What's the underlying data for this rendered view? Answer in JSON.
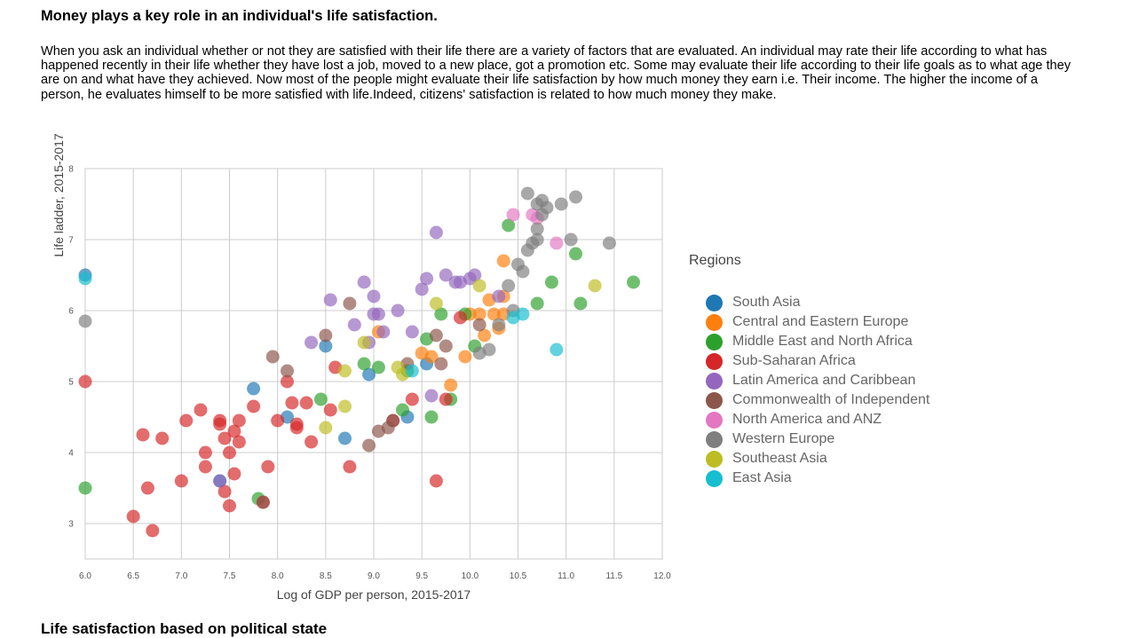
{
  "page": {
    "heading": "Money plays a key role in an individual's life satisfaction.",
    "intro": "When you ask an individual whether or not they are satisfied with their life there are a variety of factors that are evaluated. An individual may rate their life according to what has happened recently in their life whether they have lost a job, moved to a new place, got a promotion etc. Some may evaluate their life according to their life goals as to what age they are on and what have they achieved. Now most of the people might evaluate their life satisfaction by how much money they earn i.e. Their income. The higher the income of a person, he evaluates himself to be more satisfied with life.Indeed, citizens' satisfaction is related to how much money they make.",
    "next_heading": "Life satisfaction based on political state"
  },
  "chart_data": {
    "type": "scatter",
    "xlabel": "Log of GDP per person, 2015-2017",
    "ylabel": "Life ladder, 2015-2017",
    "xlim": [
      6.0,
      12.0
    ],
    "ylim": [
      2.5,
      8.0
    ],
    "x_ticks": [
      "6.0",
      "6.5",
      "7.0",
      "7.5",
      "8.0",
      "8.5",
      "9.0",
      "9.5",
      "10.0",
      "10.5",
      "11.0",
      "11.5",
      "12.0"
    ],
    "y_ticks": [
      "3",
      "4",
      "5",
      "6",
      "7",
      "8"
    ],
    "grid": true,
    "legend_title": "Regions",
    "legend_position": "right",
    "series": [
      {
        "name": "South Asia",
        "color": "#1f77b4",
        "points": [
          [
            6.0,
            6.5
          ],
          [
            7.4,
            3.6
          ],
          [
            7.75,
            4.9
          ],
          [
            8.1,
            4.5
          ],
          [
            8.5,
            5.5
          ],
          [
            8.7,
            4.2
          ],
          [
            8.95,
            5.1
          ],
          [
            9.35,
            4.5
          ],
          [
            9.55,
            5.25
          ]
        ]
      },
      {
        "name": "Central and Eastern Europe",
        "color": "#ff7f0e",
        "points": [
          [
            9.05,
            5.7
          ],
          [
            9.5,
            5.4
          ],
          [
            9.6,
            5.35
          ],
          [
            9.8,
            4.95
          ],
          [
            9.95,
            5.35
          ],
          [
            10.0,
            5.95
          ],
          [
            10.1,
            5.95
          ],
          [
            10.15,
            5.65
          ],
          [
            10.2,
            6.15
          ],
          [
            10.25,
            5.95
          ],
          [
            10.3,
            5.75
          ],
          [
            10.35,
            6.2
          ],
          [
            10.35,
            5.95
          ],
          [
            10.35,
            6.7
          ]
        ]
      },
      {
        "name": "Middle East and North Africa",
        "color": "#2ca02c",
        "points": [
          [
            6.0,
            3.5
          ],
          [
            7.8,
            3.35
          ],
          [
            8.45,
            4.75
          ],
          [
            8.9,
            5.25
          ],
          [
            9.05,
            5.2
          ],
          [
            9.3,
            4.6
          ],
          [
            9.35,
            5.15
          ],
          [
            9.55,
            5.6
          ],
          [
            9.6,
            4.5
          ],
          [
            9.7,
            5.95
          ],
          [
            9.8,
            4.75
          ],
          [
            9.95,
            5.95
          ],
          [
            10.05,
            5.5
          ],
          [
            10.4,
            7.2
          ],
          [
            10.7,
            6.1
          ],
          [
            10.85,
            6.4
          ],
          [
            11.1,
            6.8
          ],
          [
            11.15,
            6.1
          ],
          [
            11.7,
            6.4
          ]
        ]
      },
      {
        "name": "Sub-Saharan Africa",
        "color": "#d62728",
        "points": [
          [
            6.0,
            5.0
          ],
          [
            6.5,
            3.1
          ],
          [
            6.6,
            4.25
          ],
          [
            6.65,
            3.5
          ],
          [
            6.7,
            2.9
          ],
          [
            6.8,
            4.2
          ],
          [
            7.0,
            3.6
          ],
          [
            7.05,
            4.45
          ],
          [
            7.2,
            4.6
          ],
          [
            7.25,
            4.0
          ],
          [
            7.25,
            3.8
          ],
          [
            7.4,
            4.4
          ],
          [
            7.4,
            4.45
          ],
          [
            7.45,
            4.2
          ],
          [
            7.45,
            3.45
          ],
          [
            7.5,
            3.25
          ],
          [
            7.5,
            4.0
          ],
          [
            7.55,
            4.3
          ],
          [
            7.55,
            3.7
          ],
          [
            7.6,
            4.45
          ],
          [
            7.6,
            4.15
          ],
          [
            7.75,
            4.65
          ],
          [
            7.85,
            3.3
          ],
          [
            7.9,
            3.8
          ],
          [
            8.0,
            4.45
          ],
          [
            8.1,
            5.0
          ],
          [
            8.15,
            4.7
          ],
          [
            8.2,
            4.35
          ],
          [
            8.2,
            4.4
          ],
          [
            8.3,
            4.7
          ],
          [
            8.35,
            4.15
          ],
          [
            8.55,
            4.6
          ],
          [
            8.6,
            5.2
          ],
          [
            8.75,
            3.8
          ],
          [
            9.2,
            4.45
          ],
          [
            9.4,
            4.75
          ],
          [
            9.65,
            3.6
          ],
          [
            9.75,
            4.75
          ],
          [
            9.9,
            5.9
          ]
        ]
      },
      {
        "name": "Latin America and Caribbean",
        "color": "#9467bd",
        "points": [
          [
            7.4,
            3.6
          ],
          [
            8.35,
            5.55
          ],
          [
            8.55,
            6.15
          ],
          [
            8.8,
            5.8
          ],
          [
            8.9,
            6.4
          ],
          [
            8.95,
            5.55
          ],
          [
            9.0,
            6.2
          ],
          [
            9.0,
            5.95
          ],
          [
            9.05,
            5.95
          ],
          [
            9.1,
            5.7
          ],
          [
            9.25,
            6.0
          ],
          [
            9.4,
            5.7
          ],
          [
            9.5,
            6.3
          ],
          [
            9.55,
            6.45
          ],
          [
            9.6,
            4.8
          ],
          [
            9.65,
            7.1
          ],
          [
            9.75,
            6.5
          ],
          [
            9.85,
            6.4
          ],
          [
            9.9,
            6.4
          ],
          [
            10.0,
            6.45
          ],
          [
            10.05,
            6.5
          ],
          [
            10.3,
            6.2
          ]
        ]
      },
      {
        "name": "Commonwealth of Independent States",
        "color": "#8c564b",
        "points": [
          [
            7.85,
            3.3
          ],
          [
            7.95,
            5.35
          ],
          [
            8.1,
            5.15
          ],
          [
            8.5,
            5.65
          ],
          [
            8.75,
            6.1
          ],
          [
            8.95,
            4.1
          ],
          [
            9.05,
            4.3
          ],
          [
            9.15,
            4.35
          ],
          [
            9.2,
            4.45
          ],
          [
            9.35,
            5.25
          ],
          [
            9.65,
            5.65
          ],
          [
            9.7,
            5.25
          ],
          [
            9.75,
            5.5
          ],
          [
            10.1,
            5.8
          ]
        ]
      },
      {
        "name": "North America and ANZ",
        "color": "#e377c2",
        "points": [
          [
            10.45,
            7.35
          ],
          [
            10.65,
            7.35
          ],
          [
            10.7,
            7.3
          ],
          [
            10.9,
            6.95
          ]
        ]
      },
      {
        "name": "Western Europe",
        "color": "#7f7f7f",
        "points": [
          [
            6.0,
            5.85
          ],
          [
            10.1,
            5.4
          ],
          [
            10.2,
            5.45
          ],
          [
            10.3,
            5.8
          ],
          [
            10.4,
            6.35
          ],
          [
            10.45,
            6.0
          ],
          [
            10.5,
            6.65
          ],
          [
            10.55,
            6.55
          ],
          [
            10.6,
            6.85
          ],
          [
            10.6,
            7.65
          ],
          [
            10.65,
            6.95
          ],
          [
            10.7,
            7.0
          ],
          [
            10.7,
            7.15
          ],
          [
            10.7,
            7.5
          ],
          [
            10.75,
            7.55
          ],
          [
            10.75,
            7.35
          ],
          [
            10.8,
            7.45
          ],
          [
            10.95,
            7.5
          ],
          [
            11.05,
            7.0
          ],
          [
            11.1,
            7.6
          ],
          [
            11.45,
            6.95
          ]
        ]
      },
      {
        "name": "Southeast Asia",
        "color": "#bcbd22",
        "points": [
          [
            8.5,
            4.35
          ],
          [
            8.7,
            5.15
          ],
          [
            8.7,
            4.65
          ],
          [
            8.9,
            5.55
          ],
          [
            9.25,
            5.2
          ],
          [
            9.3,
            5.1
          ],
          [
            9.65,
            6.1
          ],
          [
            10.1,
            6.35
          ],
          [
            11.3,
            6.35
          ]
        ]
      },
      {
        "name": "East Asia",
        "color": "#17becf",
        "points": [
          [
            6.0,
            6.45
          ],
          [
            9.4,
            5.15
          ],
          [
            10.45,
            5.9
          ],
          [
            10.55,
            5.95
          ],
          [
            10.9,
            5.45
          ]
        ]
      }
    ]
  }
}
